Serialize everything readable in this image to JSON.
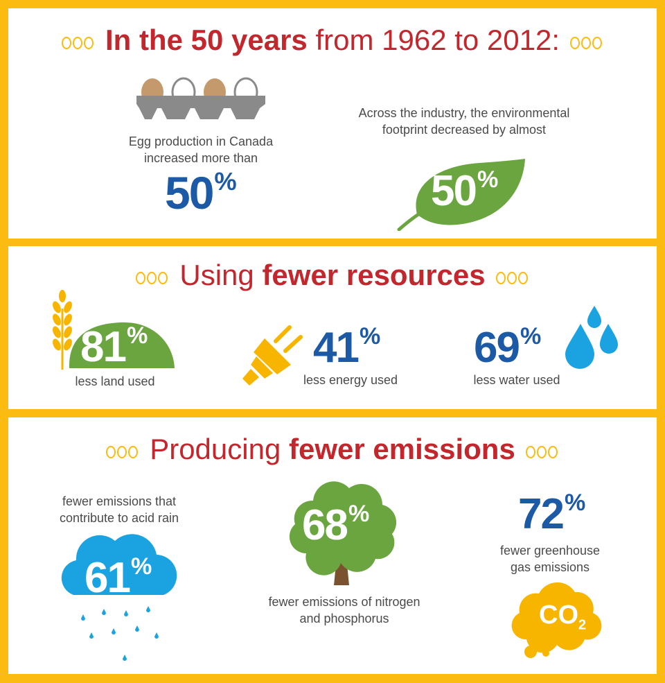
{
  "section1": {
    "heading_bold": "In the 50 years",
    "heading_rest": "from 1962 to 2012:",
    "egg_caption": "Egg production in Canada increased more than",
    "egg_value": "50",
    "footprint_caption": "Across the industry, the environmental footprint decreased by almost",
    "footprint_value": "50"
  },
  "section2": {
    "heading_regular": "Using",
    "heading_bold": "fewer resources",
    "items": [
      {
        "value": "81",
        "label": "less land used",
        "icon": "wheat-icon"
      },
      {
        "value": "41",
        "label": "less energy used",
        "icon": "plug-icon"
      },
      {
        "value": "69",
        "label": "less water used",
        "icon": "water-drops-icon"
      }
    ]
  },
  "section3": {
    "heading_regular": "Producing",
    "heading_bold": "fewer emissions",
    "items": [
      {
        "value": "61",
        "label": "fewer emissions that contribute to acid rain",
        "icon": "rain-cloud-icon"
      },
      {
        "value": "68",
        "label": "fewer emissions of nitrogen and phosphorus",
        "icon": "tree-icon"
      },
      {
        "value": "72",
        "label": "fewer greenhouse gas emissions",
        "icon": "co2-cloud-icon"
      }
    ],
    "co2_text": "CO",
    "co2_subscript": "2"
  },
  "percent_symbol": "%",
  "colors": {
    "border": "#fbbb10",
    "red": "#c1272d",
    "blue": "#1c5aa6",
    "green": "#6aa53f",
    "light_blue": "#1aa3e0",
    "gold": "#f7b500",
    "brown": "#7a5230",
    "grey": "#8a8a8a",
    "egg_brown": "#c49a6c"
  }
}
